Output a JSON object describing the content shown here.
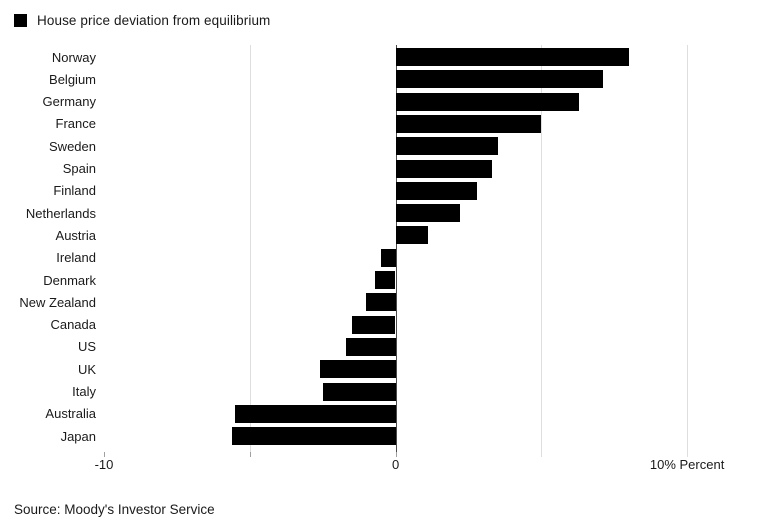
{
  "legend": {
    "label": "House price deviation from equilibrium",
    "swatch_color": "#000000"
  },
  "source": "Source: Moody's Investor Service",
  "colors": {
    "bar": "#000000",
    "gridline": "#dedede",
    "zero_line": "#4a4a4a",
    "tick": "#a0a0a0",
    "text": "#1a1a1a"
  },
  "chart_data": {
    "type": "bar",
    "orientation": "horizontal",
    "title": "House price deviation from equilibrium",
    "categories": [
      "Norway",
      "Belgium",
      "Germany",
      "France",
      "Sweden",
      "Spain",
      "Finland",
      "Netherlands",
      "Austria",
      "Ireland",
      "Denmark",
      "New Zealand",
      "Canada",
      "US",
      "UK",
      "Italy",
      "Australia",
      "Japan"
    ],
    "values": [
      8.0,
      7.1,
      6.3,
      5.0,
      3.5,
      3.3,
      2.8,
      2.2,
      1.1,
      -0.5,
      -0.7,
      -1.0,
      -1.5,
      -1.7,
      -2.6,
      -2.5,
      -5.5,
      -5.6
    ],
    "unit": "%",
    "xlabel": "Percent",
    "xlim": [
      -10,
      12.5
    ],
    "gridlines": [
      -5,
      0,
      5,
      10
    ],
    "tick_marks": [
      -10,
      -5,
      0
    ],
    "x_tick_labels": [
      {
        "value": -10,
        "label": "-10"
      },
      {
        "value": 0,
        "label": "0"
      },
      {
        "value": 10,
        "label": "10% Percent"
      }
    ],
    "legend_position": "top-left",
    "grid": "vertical-light",
    "bar_color": "#000000"
  }
}
